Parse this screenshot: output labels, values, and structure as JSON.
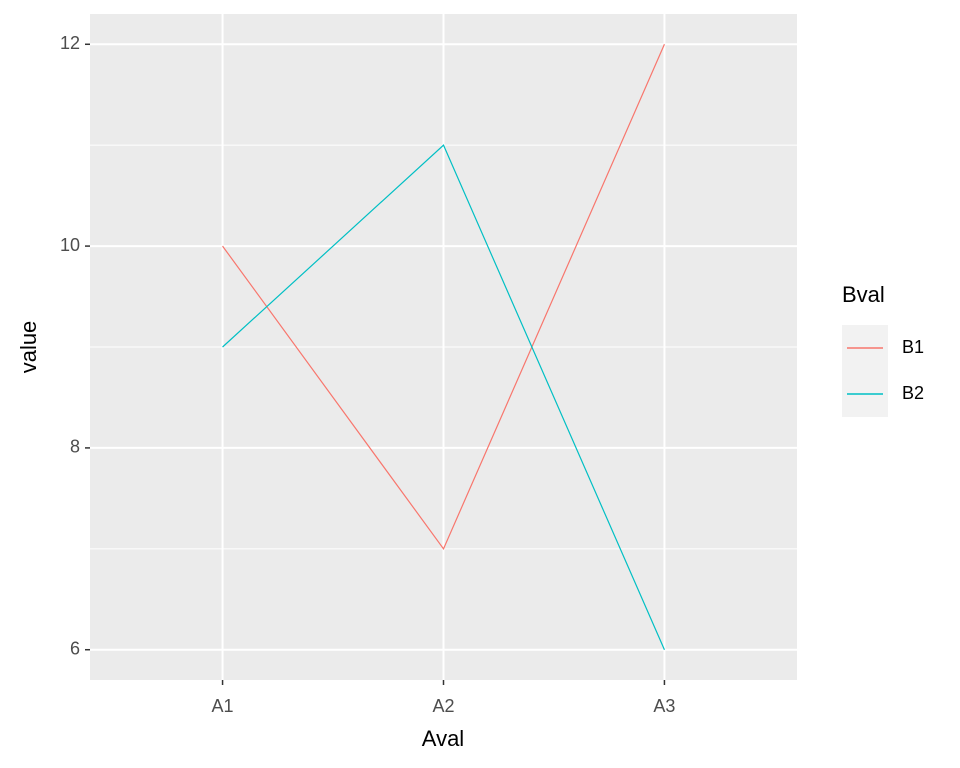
{
  "chart_data": {
    "type": "line",
    "x_label": "Aval",
    "y_label": "value",
    "categories": [
      "A1",
      "A2",
      "A3"
    ],
    "series": [
      {
        "name": "B1",
        "color": "#F8766D",
        "values": [
          10,
          7,
          12
        ]
      },
      {
        "name": "B2",
        "color": "#00BFC4",
        "values": [
          9,
          11,
          6
        ]
      }
    ],
    "ylim": [
      5.7,
      12.3
    ],
    "yticks": [
      6,
      8,
      10,
      12
    ],
    "grid": true,
    "minor_grid": true,
    "legend_title": "Bval",
    "legend_position": "right"
  }
}
